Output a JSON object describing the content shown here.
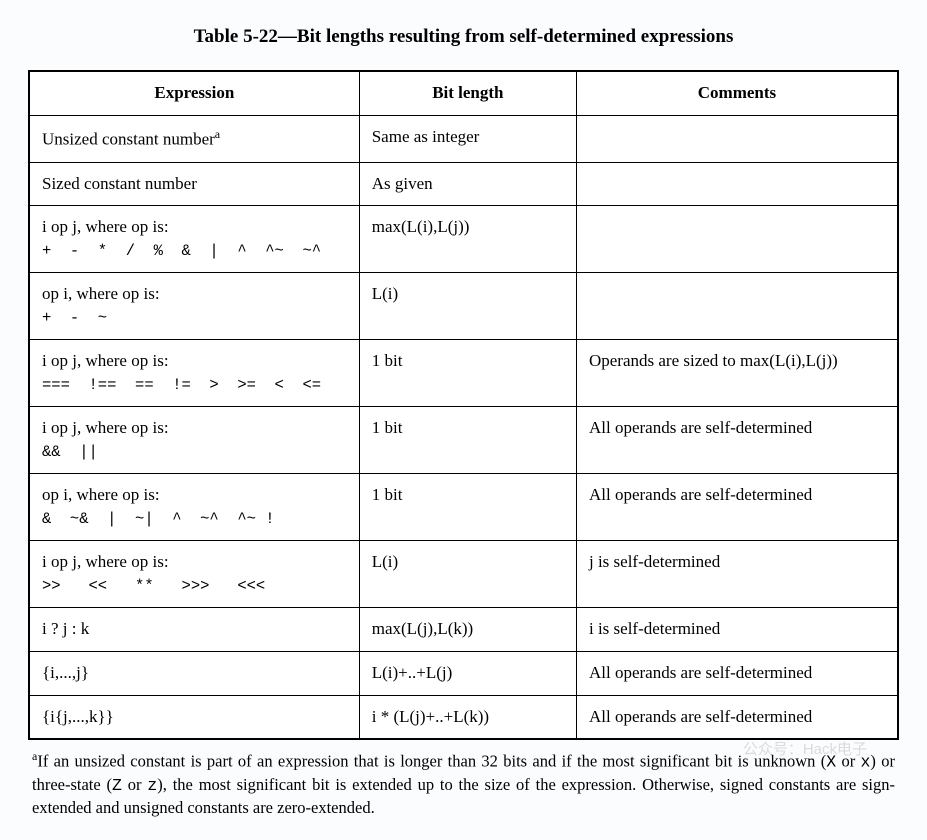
{
  "title": "Table 5-22—Bit lengths resulting from self-determined expressions",
  "columns": [
    "Expression",
    "Bit length",
    "Comments"
  ],
  "rows": [
    {
      "expr_main": "Unsized constant number",
      "expr_sup": "a",
      "expr_sub": "",
      "bitlen": "Same as integer",
      "comments": ""
    },
    {
      "expr_main": "Sized constant number",
      "expr_sup": "",
      "expr_sub": "",
      "bitlen": "As given",
      "comments": ""
    },
    {
      "expr_main": "i op j, where op is:",
      "expr_sup": "",
      "expr_sub": "+  -  *  /  %  &  |  ^  ^~  ~^",
      "bitlen": "max(L(i),L(j))",
      "comments": ""
    },
    {
      "expr_main": "op i, where op is:",
      "expr_sup": "",
      "expr_sub": "+  -  ~",
      "bitlen": "L(i)",
      "comments": ""
    },
    {
      "expr_main": "i op j, where op is:",
      "expr_sup": "",
      "expr_sub": "===  !==  ==  !=  >  >=  <  <=",
      "bitlen": "1 bit",
      "comments": "Operands are sized to max(L(i),L(j))"
    },
    {
      "expr_main": "i op j, where op is:",
      "expr_sup": "",
      "expr_sub": "&&  ||",
      "bitlen": "1 bit",
      "comments": "All operands are self-determined"
    },
    {
      "expr_main": "op i, where op is:",
      "expr_sup": "",
      "expr_sub": "&  ~&  |  ~|  ^  ~^  ^~ !",
      "bitlen": "1 bit",
      "comments": "All operands are self-determined"
    },
    {
      "expr_main": "i op j, where op is:",
      "expr_sup": "",
      "expr_sub": ">>   <<   **   >>>   <<<",
      "bitlen": "L(i)",
      "comments": "j is self-determined"
    },
    {
      "expr_main": "i ? j : k",
      "expr_sup": "",
      "expr_sub": "",
      "bitlen": "max(L(j),L(k))",
      "comments": "i is self-determined"
    },
    {
      "expr_main": "{i,...,j}",
      "expr_sup": "",
      "expr_sub": "",
      "bitlen": "L(i)+..+L(j)",
      "comments": "All operands are self-determined"
    },
    {
      "expr_main": "{i{j,...,k}}",
      "expr_sup": "",
      "expr_sub": "",
      "bitlen": "i * (L(j)+..+L(k))",
      "comments": "All operands are self-determined"
    }
  ],
  "footnote": {
    "marker": "a",
    "pre": "If an unsized constant is part of an expression that is longer than 32 bits and if the most significant bit is unknown (",
    "code1": "X",
    "mid1": " or ",
    "code2": "x",
    "mid2": ") or three-state (",
    "code3": "Z",
    "mid3": " or ",
    "code4": "z",
    "post": "), the most significant bit is extended up to the size of the expression. Otherwise, signed constants are sign-extended and unsigned constants are zero-extended."
  },
  "watermark": "公众号：Hack电子"
}
